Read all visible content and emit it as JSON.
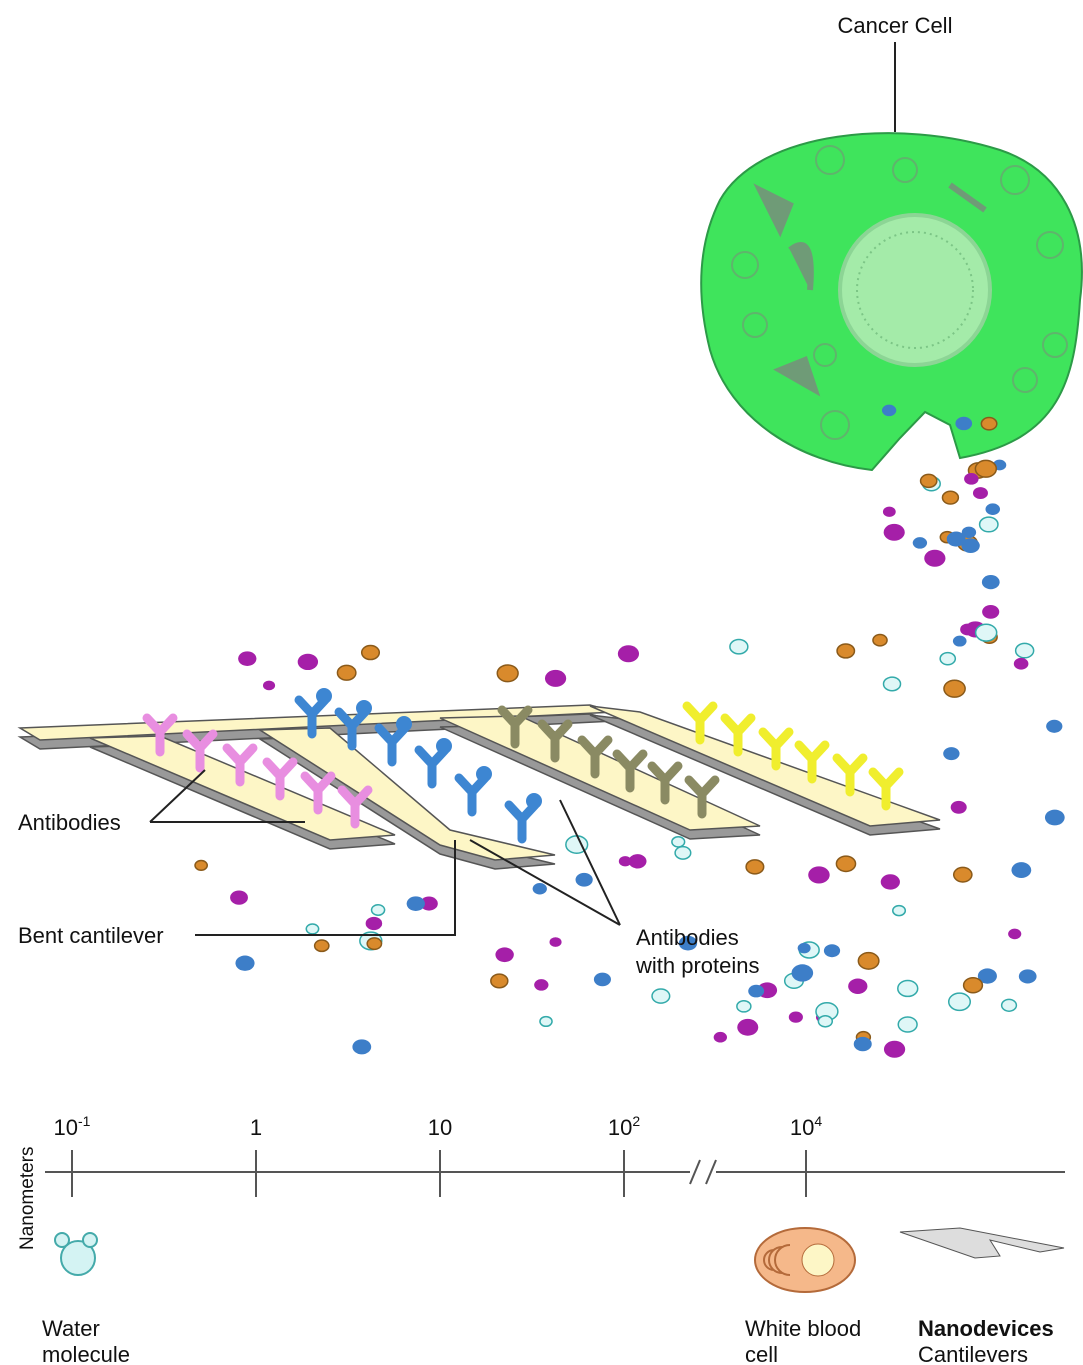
{
  "labels": {
    "cancer_cell": "Cancer Cell",
    "antibodies": "Antibodies",
    "bent_cantilever": "Bent cantilever",
    "antibodies_with_proteins": [
      "Antibodies",
      "with proteins"
    ]
  },
  "scale": {
    "axis_label": "Nanometers",
    "ticks": [
      {
        "base": "10",
        "sup": "-1"
      },
      {
        "base": "1"
      },
      {
        "base": "10"
      },
      {
        "base": "10",
        "sup": "2"
      },
      {
        "base": "10",
        "sup": "4"
      }
    ]
  },
  "examples": [
    {
      "lines": [
        "Water",
        "molecule"
      ]
    },
    {
      "lines": [
        "White blood",
        "cell"
      ]
    },
    {
      "lines": [
        "Nanodevices",
        "Cantilevers"
      ]
    }
  ]
}
